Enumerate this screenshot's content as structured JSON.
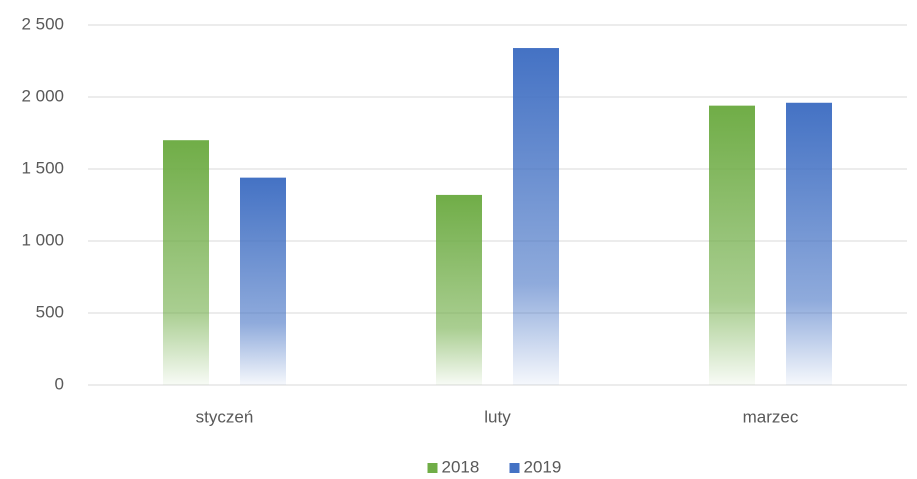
{
  "chart_data": {
    "type": "bar",
    "categories": [
      "styczeń",
      "luty",
      "marzec"
    ],
    "series": [
      {
        "name": "2018",
        "color": "#70ad47",
        "values": [
          1700,
          1320,
          1940
        ]
      },
      {
        "name": "2019",
        "color": "#4472c4",
        "values": [
          1440,
          2340,
          1960
        ]
      }
    ],
    "ylim": [
      0,
      2500
    ],
    "yticks": [
      0,
      500,
      {
        "value": 1000,
        "label": "1 000"
      },
      {
        "value": 1500,
        "label": "1 500"
      },
      {
        "value": 2000,
        "label": "2 000"
      },
      {
        "value": 2500,
        "label": "2 500"
      }
    ],
    "grid": true,
    "legend": "bottom"
  }
}
